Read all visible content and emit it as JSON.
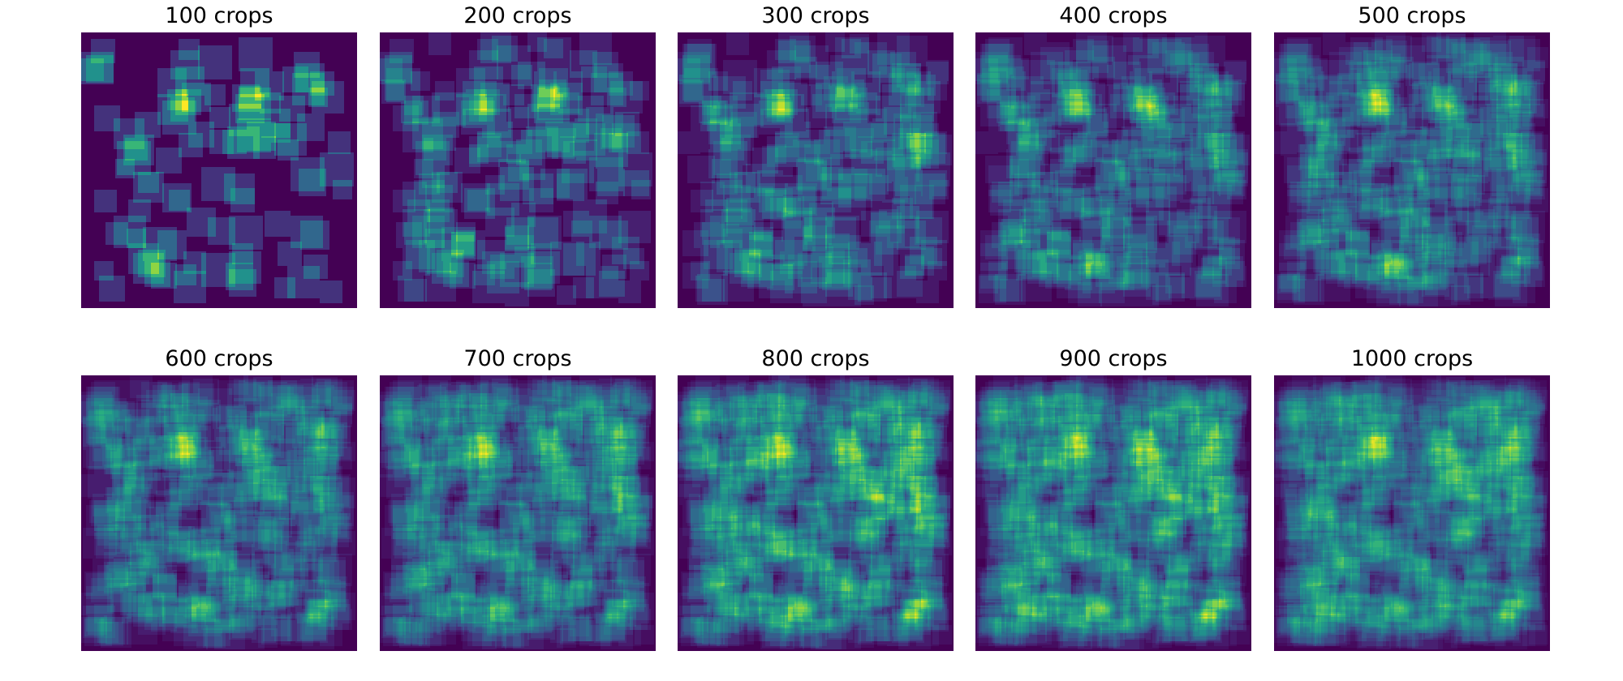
{
  "chart_data": {
    "type": "heatmap",
    "grid": {
      "rows": 2,
      "cols": 5
    },
    "colormap": "viridis",
    "colors": {
      "low": "#440154",
      "mid": "#21918c",
      "high": "#fde725"
    },
    "axes_visible": false,
    "panels": [
      {
        "title": "100 crops",
        "crops": 100
      },
      {
        "title": "200 crops",
        "crops": 200
      },
      {
        "title": "300 crops",
        "crops": 300
      },
      {
        "title": "400 crops",
        "crops": 400
      },
      {
        "title": "500 crops",
        "crops": 500
      },
      {
        "title": "600 crops",
        "crops": 600
      },
      {
        "title": "700 crops",
        "crops": 700
      },
      {
        "title": "800 crops",
        "crops": 800
      },
      {
        "title": "900 crops",
        "crops": 900
      },
      {
        "title": "1000 crops",
        "crops": 1000
      }
    ]
  }
}
